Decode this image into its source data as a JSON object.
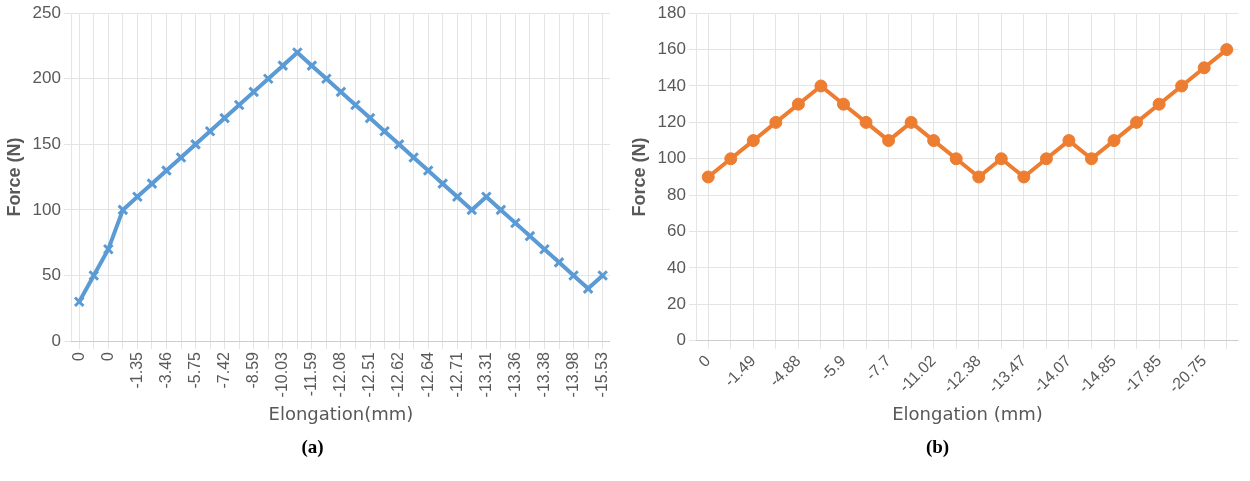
{
  "chart_data": [
    {
      "type": "line",
      "xlabel": "Elongation(mm)",
      "ylabel": "Force (N)",
      "annotations": [
        "(a)"
      ],
      "categories": [
        "0",
        null,
        "0",
        null,
        "-1.35",
        null,
        "-3.46",
        null,
        "-5.75",
        null,
        "-7.42",
        null,
        "-8.59",
        null,
        "-10.03",
        null,
        "-11.59",
        null,
        "-12.08",
        null,
        "-12.51",
        null,
        "-12.62",
        null,
        "-12.64",
        null,
        "-12.71",
        null,
        "-13.31",
        null,
        "-13.36",
        null,
        "-13.38",
        null,
        "-13.98",
        null,
        "-15.53"
      ],
      "series": [
        {
          "color": "#5b9bd5",
          "values": [
            30,
            50,
            70,
            100,
            110,
            120,
            130,
            140,
            150,
            160,
            170,
            180,
            190,
            200,
            210,
            220,
            210,
            200,
            190,
            180,
            170,
            160,
            150,
            140,
            130,
            120,
            110,
            100,
            110,
            100,
            90,
            80,
            70,
            60,
            50,
            40,
            50
          ]
        }
      ],
      "ylim": [
        0,
        250
      ],
      "yticks": [
        0,
        50,
        100,
        150,
        200,
        250
      ],
      "grid": true,
      "marker": "cross",
      "legend": false
    },
    {
      "type": "line",
      "xlabel": "Elongation (mm)",
      "ylabel": "Force (N)",
      "annotations": [
        "(b)"
      ],
      "categories": [
        "0",
        null,
        "-1.49",
        null,
        "-4.88",
        null,
        "-5.9",
        null,
        "-7.7",
        null,
        "-11.02",
        null,
        "-12.38",
        null,
        "-13.47",
        null,
        "-14.07",
        null,
        "-14.85",
        null,
        "-17.85",
        null,
        "-20.75",
        null
      ],
      "series": [
        {
          "color": "#ed7d31",
          "values": [
            90,
            100,
            110,
            120,
            130,
            140,
            130,
            120,
            110,
            120,
            110,
            100,
            90,
            100,
            90,
            100,
            110,
            100,
            110,
            120,
            130,
            140,
            150,
            160
          ]
        }
      ],
      "ylim": [
        0,
        180
      ],
      "yticks": [
        0,
        20,
        40,
        60,
        80,
        100,
        120,
        140,
        160,
        180
      ],
      "grid": true,
      "marker": "circle",
      "legend": false
    }
  ]
}
